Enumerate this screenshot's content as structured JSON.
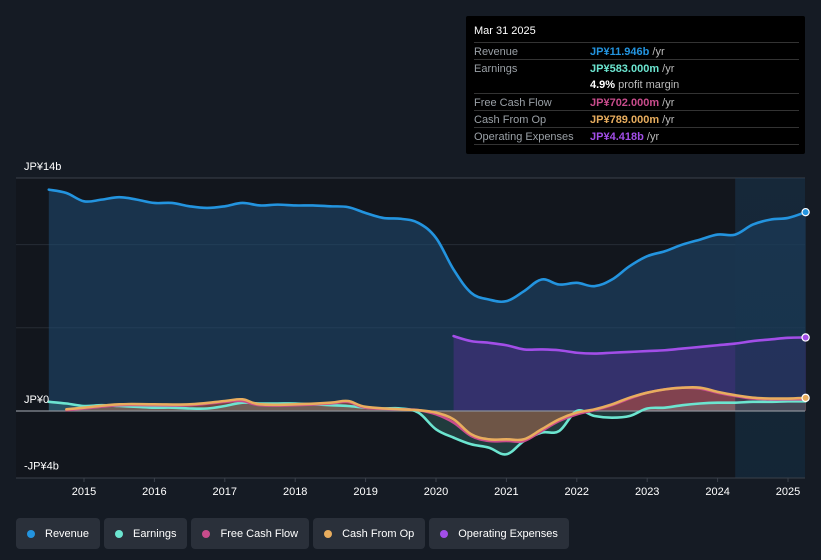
{
  "tooltip": {
    "date": "Mar 31 2025",
    "rows": [
      {
        "label": "Revenue",
        "value": "JP¥11.946b",
        "unit": " /yr",
        "color": "#2394df"
      },
      {
        "label": "Earnings",
        "value": "JP¥583.000m",
        "unit": " /yr",
        "color": "#6ce5d0"
      },
      {
        "label": "",
        "value": "4.9%",
        "unit": " profit margin",
        "color": "#ffffff"
      },
      {
        "label": "Free Cash Flow",
        "value": "JP¥702.000m",
        "unit": " /yr",
        "color": "#c94c8c"
      },
      {
        "label": "Cash From Op",
        "value": "JP¥789.000m",
        "unit": " /yr",
        "color": "#e8ad5e"
      },
      {
        "label": "Operating Expenses",
        "value": "JP¥4.418b",
        "unit": " /yr",
        "color": "#a24ee8"
      }
    ]
  },
  "legend": [
    {
      "label": "Revenue",
      "color": "#2394df"
    },
    {
      "label": "Earnings",
      "color": "#6ce5d0"
    },
    {
      "label": "Free Cash Flow",
      "color": "#c94c8c"
    },
    {
      "label": "Cash From Op",
      "color": "#e8ad5e"
    },
    {
      "label": "Operating Expenses",
      "color": "#a24ee8"
    }
  ],
  "chart_data": {
    "type": "area",
    "title": "",
    "xlabel": "",
    "ylabel": "",
    "y_tick_labels": [
      {
        "value": 14,
        "label": "JP¥14b"
      },
      {
        "value": 0,
        "label": "JP¥0"
      },
      {
        "value": -4,
        "label": "-JP¥4b"
      }
    ],
    "ylim": [
      -4,
      14
    ],
    "y_unit": "JP¥ billions",
    "gridlines": [
      14,
      10,
      5,
      0
    ],
    "xlim": [
      2014.0,
      2025.3
    ],
    "x_ticks": [
      2015,
      2016,
      2017,
      2018,
      2019,
      2020,
      2021,
      2022,
      2023,
      2024,
      2025
    ],
    "highlight_region_start": 2024.25,
    "legend_position": "bottom",
    "series": [
      {
        "name": "Revenue",
        "color": "#2394df",
        "x": [
          2014.5,
          2014.75,
          2015.0,
          2015.25,
          2015.5,
          2015.75,
          2016.0,
          2016.25,
          2016.5,
          2016.75,
          2017.0,
          2017.25,
          2017.5,
          2017.75,
          2018.0,
          2018.25,
          2018.5,
          2018.75,
          2019.0,
          2019.25,
          2019.5,
          2019.75,
          2020.0,
          2020.25,
          2020.5,
          2020.75,
          2021.0,
          2021.25,
          2021.5,
          2021.75,
          2022.0,
          2022.25,
          2022.5,
          2022.75,
          2023.0,
          2023.25,
          2023.5,
          2023.75,
          2024.0,
          2024.25,
          2024.5,
          2024.75,
          2025.0,
          2025.25
        ],
        "values": [
          13.3,
          13.1,
          12.6,
          12.7,
          12.85,
          12.7,
          12.5,
          12.5,
          12.3,
          12.2,
          12.3,
          12.5,
          12.35,
          12.4,
          12.35,
          12.35,
          12.3,
          12.25,
          11.9,
          11.6,
          11.55,
          11.3,
          10.4,
          8.5,
          7.1,
          6.7,
          6.6,
          7.2,
          7.9,
          7.6,
          7.7,
          7.5,
          7.9,
          8.7,
          9.3,
          9.6,
          10.0,
          10.3,
          10.6,
          10.6,
          11.2,
          11.5,
          11.6,
          11.946
        ]
      },
      {
        "name": "Earnings",
        "color": "#6ce5d0",
        "x": [
          2014.5,
          2014.75,
          2015.0,
          2015.25,
          2015.5,
          2015.75,
          2016.0,
          2016.25,
          2016.5,
          2016.75,
          2017.0,
          2017.25,
          2017.5,
          2017.75,
          2018.0,
          2018.25,
          2018.5,
          2018.75,
          2019.0,
          2019.25,
          2019.5,
          2019.75,
          2020.0,
          2020.25,
          2020.5,
          2020.75,
          2021.0,
          2021.25,
          2021.5,
          2021.75,
          2022.0,
          2022.25,
          2022.5,
          2022.75,
          2023.0,
          2023.25,
          2023.5,
          2023.75,
          2024.0,
          2024.25,
          2024.5,
          2024.75,
          2025.0,
          2025.25
        ],
        "values": [
          0.55,
          0.45,
          0.3,
          0.35,
          0.3,
          0.25,
          0.2,
          0.2,
          0.15,
          0.15,
          0.3,
          0.5,
          0.45,
          0.45,
          0.45,
          0.4,
          0.35,
          0.3,
          0.2,
          0.15,
          0.15,
          -0.1,
          -1.1,
          -1.6,
          -2.0,
          -2.2,
          -2.6,
          -1.8,
          -1.3,
          -1.2,
          0.0,
          -0.3,
          -0.4,
          -0.3,
          0.15,
          0.2,
          0.35,
          0.45,
          0.5,
          0.5,
          0.55,
          0.55,
          0.58,
          0.583
        ]
      },
      {
        "name": "Free Cash Flow",
        "color": "#c94c8c",
        "x": [
          2014.75,
          2015.0,
          2015.5,
          2016.0,
          2016.5,
          2017.0,
          2017.25,
          2017.5,
          2018.0,
          2018.5,
          2018.75,
          2019.0,
          2019.5,
          2019.75,
          2020.0,
          2020.25,
          2020.5,
          2020.75,
          2021.0,
          2021.25,
          2021.5,
          2021.75,
          2022.0,
          2022.25,
          2022.5,
          2022.75,
          2023.0,
          2023.25,
          2023.5,
          2023.75,
          2024.0,
          2024.25,
          2024.5,
          2024.75,
          2025.0,
          2025.25
        ],
        "values": [
          0.05,
          0.15,
          0.35,
          0.35,
          0.35,
          0.55,
          0.6,
          0.35,
          0.35,
          0.45,
          0.55,
          0.2,
          0.1,
          0.05,
          -0.2,
          -0.7,
          -1.5,
          -1.8,
          -1.8,
          -1.8,
          -1.2,
          -0.6,
          -0.2,
          0.05,
          0.35,
          0.75,
          1.1,
          1.3,
          1.4,
          1.35,
          1.1,
          0.9,
          0.75,
          0.7,
          0.7,
          0.702
        ]
      },
      {
        "name": "Cash From Op",
        "color": "#e8ad5e",
        "x": [
          2014.75,
          2015.0,
          2015.5,
          2016.0,
          2016.5,
          2017.0,
          2017.25,
          2017.5,
          2018.0,
          2018.5,
          2018.75,
          2019.0,
          2019.5,
          2019.75,
          2020.0,
          2020.25,
          2020.5,
          2020.75,
          2021.0,
          2021.25,
          2021.5,
          2021.75,
          2022.0,
          2022.25,
          2022.5,
          2022.75,
          2023.0,
          2023.25,
          2023.5,
          2023.75,
          2024.0,
          2024.25,
          2024.5,
          2024.75,
          2025.0,
          2025.25
        ],
        "values": [
          0.1,
          0.2,
          0.4,
          0.4,
          0.4,
          0.6,
          0.7,
          0.4,
          0.4,
          0.5,
          0.6,
          0.25,
          0.1,
          0.05,
          -0.1,
          -0.5,
          -1.4,
          -1.7,
          -1.7,
          -1.7,
          -1.1,
          -0.5,
          -0.1,
          0.1,
          0.4,
          0.8,
          1.1,
          1.3,
          1.4,
          1.4,
          1.15,
          0.95,
          0.8,
          0.75,
          0.75,
          0.789
        ]
      },
      {
        "name": "Operating Expenses",
        "color": "#a24ee8",
        "x": [
          2020.25,
          2020.5,
          2020.75,
          2021.0,
          2021.25,
          2021.5,
          2021.75,
          2022.0,
          2022.25,
          2022.5,
          2022.75,
          2023.0,
          2023.25,
          2023.5,
          2023.75,
          2024.0,
          2024.25,
          2024.5,
          2024.75,
          2025.0,
          2025.25
        ],
        "values": [
          4.5,
          4.2,
          4.1,
          3.95,
          3.7,
          3.7,
          3.65,
          3.5,
          3.45,
          3.5,
          3.55,
          3.6,
          3.65,
          3.75,
          3.85,
          3.95,
          4.05,
          4.2,
          4.3,
          4.4,
          4.418
        ]
      }
    ]
  }
}
